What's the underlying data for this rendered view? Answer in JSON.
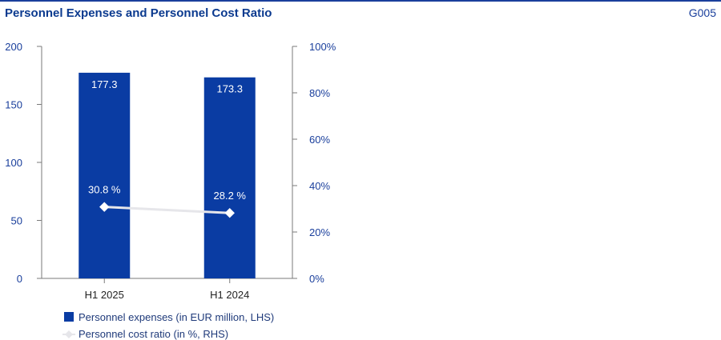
{
  "header": {
    "title": "Personnel Expenses and Personnel Cost Ratio",
    "code": "G005"
  },
  "colors": {
    "bar": "#0a3ca3",
    "line": "#e6e6ea",
    "axis": "#7a7a7a",
    "text": "#1a3f9c"
  },
  "chart_data": {
    "type": "bar",
    "categories": [
      "H1 2025",
      "H1 2024"
    ],
    "series": [
      {
        "name": "Personnel expenses (in EUR million, LHS)",
        "type": "bar",
        "axis": "left",
        "values": [
          177.3,
          173.3
        ],
        "labels": [
          "177.3",
          "173.3"
        ]
      },
      {
        "name": "Personnel cost ratio (in %, RHS)",
        "type": "line",
        "axis": "right",
        "values": [
          30.8,
          28.2
        ],
        "labels": [
          "30.8 %",
          "28.2 %"
        ]
      }
    ],
    "y_left": {
      "min": 0,
      "max": 200,
      "ticks": [
        "0",
        "50",
        "100",
        "150",
        "200"
      ]
    },
    "y_right": {
      "min": 0,
      "max": 100,
      "ticks": [
        "0%",
        "20%",
        "40%",
        "60%",
        "80%",
        "100%"
      ]
    },
    "grid": false,
    "legend_position": "bottom-left"
  }
}
